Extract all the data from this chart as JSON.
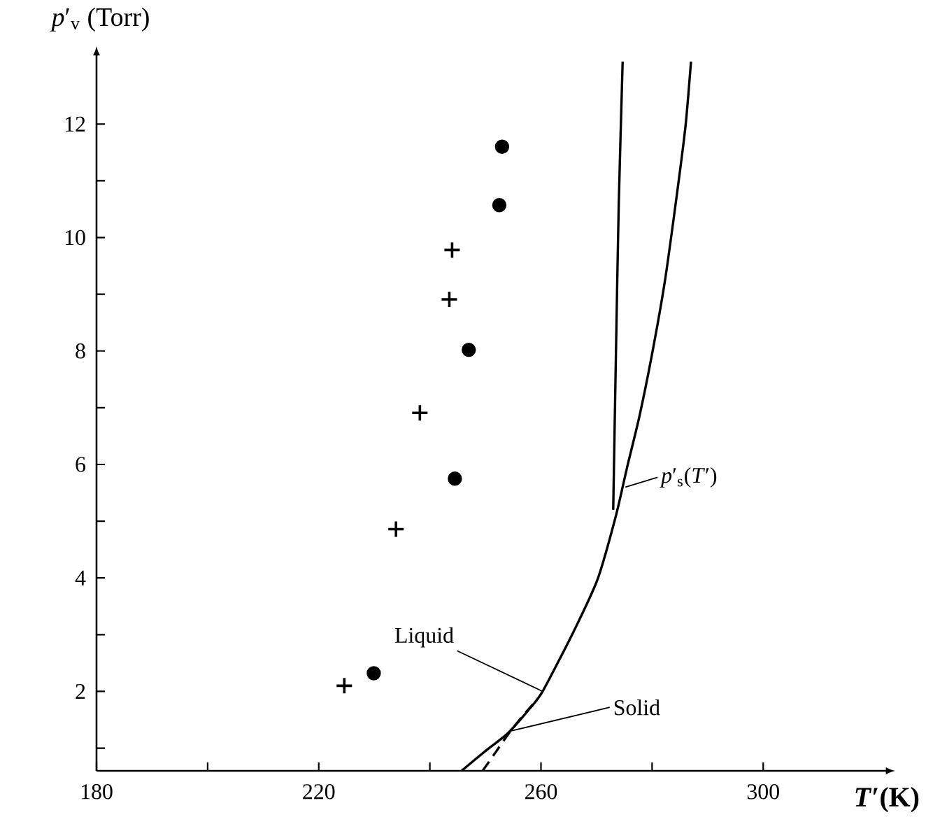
{
  "chart_data": {
    "type": "scatter",
    "xlabel": "*T*′(K)",
    "ylabel": "*p*′$_{v}$ (Torr)",
    "xlim": [
      180,
      322
    ],
    "ylim": [
      0.6,
      13.2
    ],
    "xticks": [
      180,
      {
        "value": 200,
        "label": null
      },
      220,
      {
        "value": 240,
        "label": null
      },
      260,
      {
        "value": 280,
        "label": null
      },
      300
    ],
    "yticks": [
      {
        "value": 1,
        "label": null
      },
      2,
      {
        "value": 3,
        "label": null
      },
      4,
      {
        "value": 5,
        "label": null
      },
      6,
      {
        "value": 7,
        "label": null
      },
      8,
      {
        "value": 9,
        "label": null
      },
      10,
      {
        "value": 11,
        "label": null
      },
      12
    ],
    "series": [
      {
        "marker": "cross",
        "color": "#000000",
        "x": [
          224.6,
          233.9,
          238.2,
          243.5,
          244
        ],
        "values": [
          2.1,
          4.86,
          6.91,
          8.91,
          9.78
        ]
      },
      {
        "marker": "circle",
        "color": "#000000",
        "x": [
          229.9,
          244.5,
          247,
          252.5,
          253
        ],
        "values": [
          2.32,
          5.75,
          8.02,
          10.57,
          11.6
        ]
      },
      {
        "type": "line",
        "color": "#000000",
        "line_style": "solid",
        "x": [
          245.7,
          250,
          254,
          258,
          260.3,
          265.9,
          270.2,
          273.5,
          275.5,
          277.7,
          280,
          282.3,
          284.3,
          286,
          287
        ],
        "values": [
          0.6,
          0.95,
          1.26,
          1.7,
          2.0,
          3.06,
          3.98,
          5.1,
          5.95,
          6.84,
          7.95,
          9.23,
          10.64,
          11.95,
          13.1
        ]
      },
      {
        "type": "line",
        "color": "#000000",
        "line_style": "dashed",
        "x": [
          249.5,
          252,
          254.5,
          257,
          258.8
        ],
        "values": [
          0.6,
          0.95,
          1.3,
          1.6,
          1.8
        ]
      },
      {
        "type": "line",
        "color": "#000000",
        "line_style": "solid",
        "x": [
          273,
          273.5,
          274,
          274.7
        ],
        "values": [
          5.2,
          8,
          10.6,
          13.1
        ]
      }
    ],
    "annotations": [
      {
        "text": "Liquid",
        "x": 260.3,
        "y": 2.0
      },
      {
        "text": "Solid",
        "x": 254.5,
        "y": 1.3
      },
      {
        "text": "*p*′$_{s}$(*T*′)",
        "x": 275.2,
        "y": 5.6
      }
    ]
  }
}
